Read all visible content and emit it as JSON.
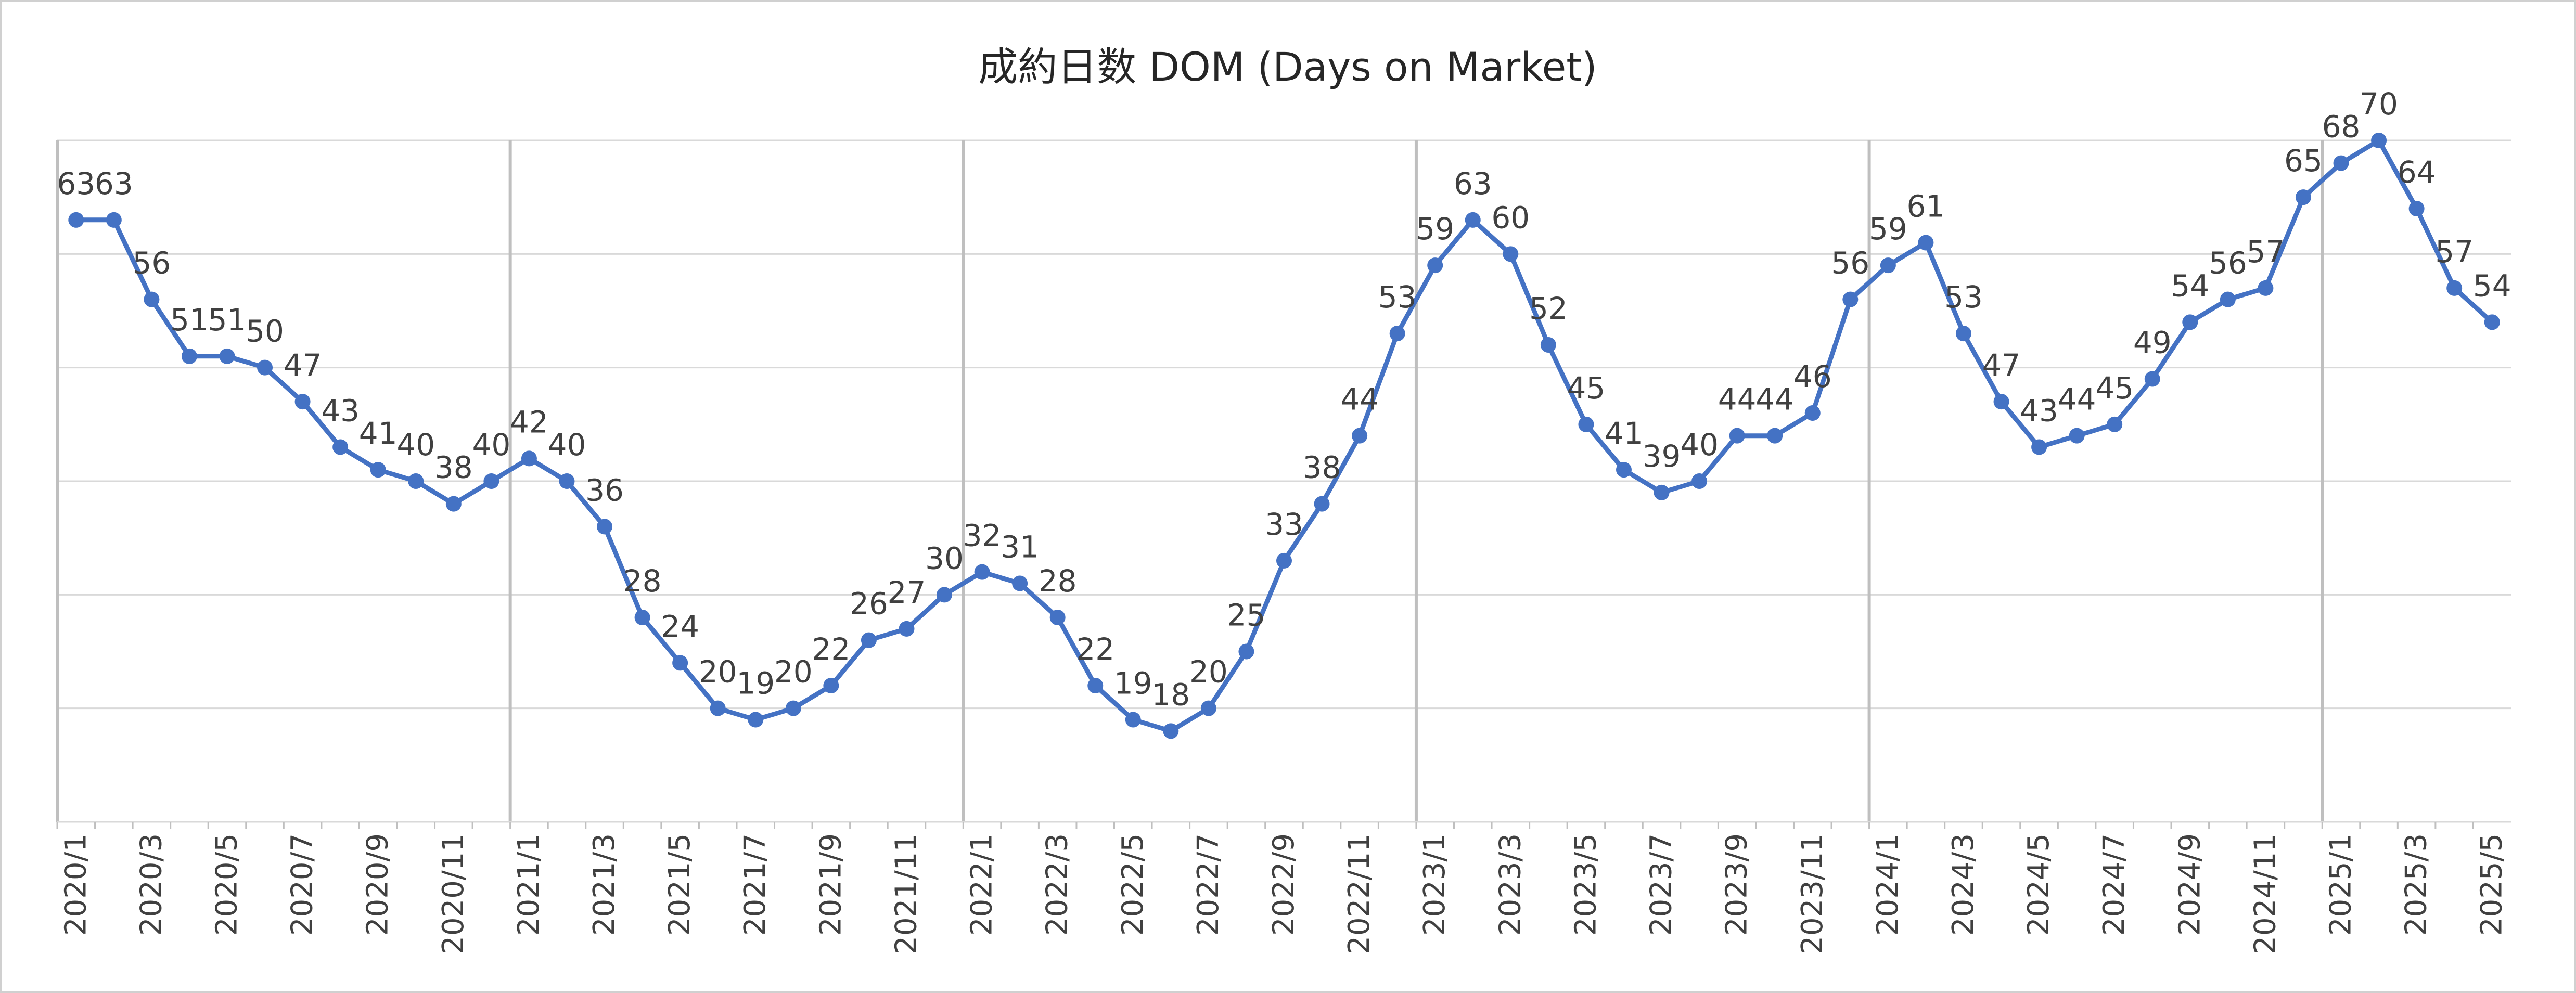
{
  "chart_data": {
    "type": "line",
    "title": "成約日数 DOM (Days on Market)",
    "xlabel": "",
    "ylabel": "",
    "ylim": [
      10,
      70
    ],
    "grid": true,
    "legend": "none",
    "color": "#4472C4",
    "categories": [
      "2020/1",
      "2020/2",
      "2020/3",
      "2020/4",
      "2020/5",
      "2020/6",
      "2020/7",
      "2020/8",
      "2020/9",
      "2020/10",
      "2020/11",
      "2020/12",
      "2021/1",
      "2021/2",
      "2021/3",
      "2021/4",
      "2021/5",
      "2021/6",
      "2021/7",
      "2021/8",
      "2021/9",
      "2021/10",
      "2021/11",
      "2021/12",
      "2022/1",
      "2022/2",
      "2022/3",
      "2022/4",
      "2022/5",
      "2022/6",
      "2022/7",
      "2022/8",
      "2022/9",
      "2022/10",
      "2022/11",
      "2022/12",
      "2023/1",
      "2023/2",
      "2023/3",
      "2023/4",
      "2023/5",
      "2023/6",
      "2023/7",
      "2023/8",
      "2023/9",
      "2023/10",
      "2023/11",
      "2023/12",
      "2024/1",
      "2024/2",
      "2024/3",
      "2024/4",
      "2024/5",
      "2024/6",
      "2024/7",
      "2024/8",
      "2024/9",
      "2024/10",
      "2024/11",
      "2024/12",
      "2025/1",
      "2025/2",
      "2025/3",
      "2025/4",
      "2025/5"
    ],
    "x_tick_labels": [
      "2020/1",
      "2020/3",
      "2020/5",
      "2020/7",
      "2020/9",
      "2020/11",
      "2021/1",
      "2021/3",
      "2021/5",
      "2021/7",
      "2021/9",
      "2021/11",
      "2022/1",
      "2022/3",
      "2022/5",
      "2022/7",
      "2022/9",
      "2022/11",
      "2023/1",
      "2023/3",
      "2023/5",
      "2023/7",
      "2023/9",
      "2023/11",
      "2024/1",
      "2024/3",
      "2024/5",
      "2024/7",
      "2024/9",
      "2024/11",
      "2025/1",
      "2025/3",
      "2025/5"
    ],
    "series": [
      {
        "values": [
          63,
          63,
          56,
          51,
          51,
          50,
          47,
          43,
          41,
          40,
          38,
          40,
          42,
          40,
          36,
          28,
          24,
          20,
          19,
          20,
          22,
          26,
          27,
          30,
          32,
          31,
          28,
          22,
          19,
          18,
          20,
          25,
          33,
          38,
          44,
          53,
          59,
          63,
          60,
          52,
          45,
          41,
          39,
          40,
          44,
          44,
          46,
          56,
          59,
          61,
          53,
          47,
          43,
          44,
          45,
          49,
          54,
          56,
          57,
          65,
          68,
          70,
          64,
          57,
          54
        ]
      }
    ]
  }
}
